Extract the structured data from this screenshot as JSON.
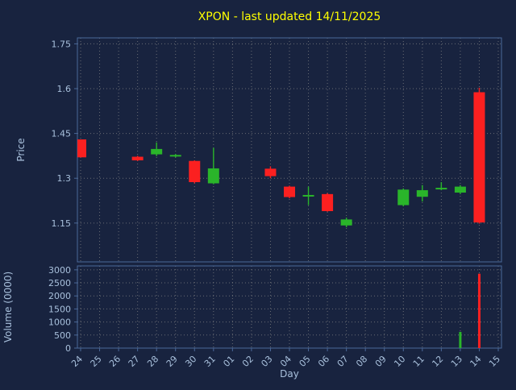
{
  "colors": {
    "background": "#18233f",
    "title": "#ffff00",
    "axis_text": "#a8c0dc",
    "grid": "#8a8a8a",
    "border": "#4a6899",
    "up": "#2ab52a",
    "down": "#fb2020"
  },
  "chart_data": {
    "type": "candlestick",
    "title": "XPON - last updated 14/11/2025",
    "xlabel": "Day",
    "grid": true,
    "x_categories": [
      "24",
      "25",
      "26",
      "27",
      "28",
      "29",
      "30",
      "31",
      "01",
      "02",
      "03",
      "04",
      "05",
      "06",
      "07",
      "08",
      "09",
      "10",
      "11",
      "12",
      "13",
      "14",
      "15"
    ],
    "price_panel": {
      "ylabel": "Price",
      "ylim": [
        1.02,
        1.77
      ],
      "yticks": [
        1.15,
        1.3,
        1.45,
        1.6,
        1.75
      ],
      "ytick_labels": [
        "1.15",
        "1.3",
        "1.45",
        "1.6",
        "1.75"
      ],
      "candles": [
        {
          "day": "24",
          "open": 1.43,
          "high": 1.43,
          "low": 1.37,
          "close": 1.37,
          "dir": "down"
        },
        {
          "day": "27",
          "open": 1.372,
          "high": 1.375,
          "low": 1.358,
          "close": 1.36,
          "dir": "down"
        },
        {
          "day": "28",
          "open": 1.38,
          "high": 1.42,
          "low": 1.374,
          "close": 1.398,
          "dir": "up"
        },
        {
          "day": "29",
          "open": 1.374,
          "high": 1.381,
          "low": 1.37,
          "close": 1.378,
          "dir": "up"
        },
        {
          "day": "30",
          "open": 1.358,
          "high": 1.36,
          "low": 1.283,
          "close": 1.287,
          "dir": "down"
        },
        {
          "day": "31",
          "open": 1.283,
          "high": 1.402,
          "low": 1.28,
          "close": 1.333,
          "dir": "up"
        },
        {
          "day": "03",
          "open": 1.332,
          "high": 1.34,
          "low": 1.3,
          "close": 1.307,
          "dir": "down"
        },
        {
          "day": "04",
          "open": 1.272,
          "high": 1.275,
          "low": 1.233,
          "close": 1.237,
          "dir": "down"
        },
        {
          "day": "05",
          "open": 1.24,
          "high": 1.272,
          "low": 1.21,
          "close": 1.244,
          "dir": "up"
        },
        {
          "day": "06",
          "open": 1.247,
          "high": 1.25,
          "low": 1.188,
          "close": 1.19,
          "dir": "down"
        },
        {
          "day": "07",
          "open": 1.142,
          "high": 1.168,
          "low": 1.136,
          "close": 1.162,
          "dir": "up"
        },
        {
          "day": "10",
          "open": 1.21,
          "high": 1.266,
          "low": 1.206,
          "close": 1.262,
          "dir": "up"
        },
        {
          "day": "11",
          "open": 1.238,
          "high": 1.277,
          "low": 1.222,
          "close": 1.26,
          "dir": "up"
        },
        {
          "day": "12",
          "open": 1.263,
          "high": 1.287,
          "low": 1.26,
          "close": 1.268,
          "dir": "up"
        },
        {
          "day": "13",
          "open": 1.252,
          "high": 1.277,
          "low": 1.247,
          "close": 1.272,
          "dir": "up"
        },
        {
          "day": "14",
          "open": 1.588,
          "high": 1.603,
          "low": 1.148,
          "close": 1.152,
          "dir": "down"
        }
      ]
    },
    "volume_panel": {
      "ylabel": "Volume (0000)",
      "ylim": [
        0,
        3150
      ],
      "yticks": [
        0,
        500,
        1000,
        1500,
        2000,
        2500,
        3000
      ],
      "ytick_labels": [
        "0",
        "500",
        "1000",
        "1500",
        "2000",
        "2500",
        "3000"
      ],
      "bars": [
        {
          "day": "13",
          "value": 620,
          "dir": "up"
        },
        {
          "day": "14",
          "value": 2850,
          "dir": "down"
        }
      ]
    }
  }
}
